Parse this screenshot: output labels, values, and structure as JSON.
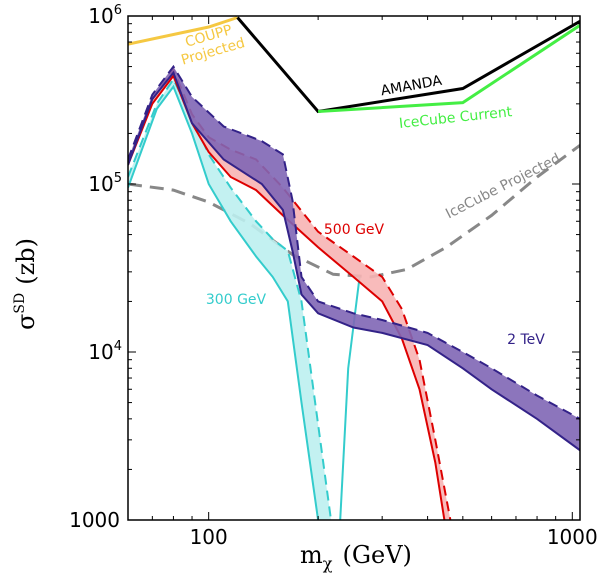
{
  "chart_data": {
    "type": "line",
    "xscale": "log",
    "yscale": "log",
    "xlim": [
      60,
      1050
    ],
    "ylim": [
      1000,
      1000000
    ],
    "xlabel": {
      "main": "m",
      "sub": "χ",
      "unit": "(GeV)"
    },
    "ylabel": {
      "main": "σ",
      "sup": "SD",
      "unit": "(zb)"
    },
    "xticks": [
      {
        "value": 100,
        "label": "100"
      },
      {
        "value": 1000,
        "label": "1000"
      }
    ],
    "yticks": [
      {
        "value": 1000,
        "label": "1000"
      },
      {
        "value": 10000,
        "label": "10",
        "exp": "4"
      },
      {
        "value": 100000,
        "label": "10",
        "exp": "5"
      },
      {
        "value": 1000000,
        "label": "10",
        "exp": "6"
      }
    ],
    "grid": false,
    "limits": [
      {
        "name": "COUPP Projected",
        "label_lines": [
          "COUPP",
          "Projected"
        ],
        "color": "#f5c842",
        "dash": false,
        "x": [
          60,
          100,
          120
        ],
        "y": [
          680000,
          860000,
          980000
        ]
      },
      {
        "name": "AMANDA",
        "label_lines": [
          "AMANDA"
        ],
        "color": "#000000",
        "dash": false,
        "x": [
          120,
          200,
          500,
          1050
        ],
        "y": [
          980000,
          270000,
          370000,
          930000
        ]
      },
      {
        "name": "IceCube Current",
        "label_lines": [
          "IceCube Current"
        ],
        "color": "#44ee44",
        "dash": false,
        "x": [
          200,
          500,
          1050
        ],
        "y": [
          270000,
          305000,
          880000
        ]
      },
      {
        "name": "IceCube Projected",
        "label_lines": [
          "IceCube Projected"
        ],
        "color": "#888888",
        "dash": true,
        "x": [
          60,
          80,
          100,
          130,
          170,
          220,
          280,
          350,
          450,
          600,
          800,
          1050
        ],
        "y": [
          100000,
          92000,
          78000,
          58000,
          38000,
          29000,
          28000,
          31000,
          42000,
          65000,
          110000,
          170000
        ]
      }
    ],
    "bands": [
      {
        "name": "300 GeV",
        "label": "300 GeV",
        "color": "#33cccc",
        "fill": "#bdeff0",
        "lower": {
          "x": [
            60,
            72,
            80,
            90,
            100,
            115,
            135,
            150,
            165,
            180,
            200
          ],
          "y": [
            95000,
            280000,
            380000,
            200000,
            100000,
            60000,
            37000,
            28000,
            20000,
            5000,
            1000
          ]
        },
        "upper": {
          "x": [
            60,
            72,
            80,
            90,
            100,
            115,
            135,
            150,
            165,
            180,
            217
          ],
          "y": [
            110000,
            300000,
            420000,
            250000,
            150000,
            95000,
            60000,
            47000,
            40000,
            20000,
            1000
          ]
        },
        "right_branch": {
          "x": [
            230,
            242,
            260
          ],
          "y": [
            1000,
            8000,
            28000
          ]
        }
      },
      {
        "name": "500 GeV",
        "label": "500 GeV",
        "color": "#dd0000",
        "fill": "#f7b4b4",
        "lower": {
          "x": [
            60,
            70,
            80,
            90,
            100,
            115,
            135,
            160,
            200,
            250,
            300,
            340,
            380,
            420,
            445
          ],
          "y": [
            130000,
            300000,
            440000,
            230000,
            155000,
            110000,
            92000,
            65000,
            42000,
            28000,
            20000,
            12000,
            6000,
            2200,
            1000
          ]
        },
        "upper": {
          "x": [
            60,
            70,
            80,
            90,
            100,
            115,
            135,
            160,
            200,
            250,
            300,
            340,
            380,
            420,
            462
          ],
          "y": [
            140000,
            320000,
            480000,
            260000,
            190000,
            160000,
            140000,
            95000,
            52000,
            37000,
            28000,
            18000,
            9000,
            3000,
            1000
          ]
        }
      },
      {
        "name": "2 TeV",
        "label": "2 TeV",
        "color": "#332288",
        "fill": "#8066b5",
        "lower": {
          "x": [
            60,
            70,
            80,
            90,
            110,
            140,
            160,
            170,
            180,
            200,
            250,
            300,
            400,
            500,
            600,
            800,
            1050
          ],
          "y": [
            130000,
            320000,
            460000,
            230000,
            140000,
            100000,
            70000,
            40000,
            22000,
            17000,
            14000,
            13000,
            11000,
            8000,
            6000,
            4000,
            2600
          ]
        },
        "upper": {
          "x": [
            60,
            70,
            80,
            90,
            110,
            140,
            160,
            170,
            180,
            200,
            250,
            300,
            400,
            500,
            600,
            800,
            1050
          ],
          "y": [
            140000,
            340000,
            500000,
            330000,
            220000,
            180000,
            150000,
            80000,
            28000,
            20000,
            17000,
            15500,
            13000,
            10000,
            8000,
            5500,
            4000
          ]
        }
      }
    ]
  }
}
